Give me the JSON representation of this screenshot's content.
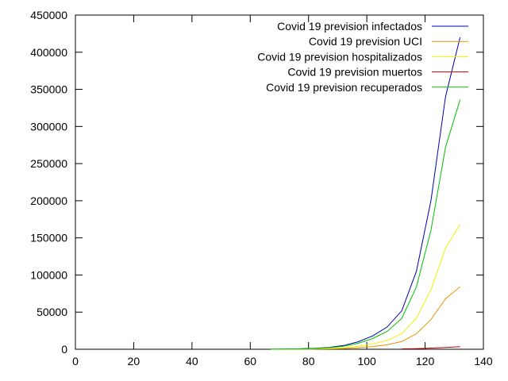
{
  "chart_data": {
    "type": "line",
    "title": "",
    "xlabel": "",
    "ylabel": "",
    "xlim": [
      0,
      140
    ],
    "ylim": [
      0,
      450000
    ],
    "xticks": [
      0,
      20,
      40,
      60,
      80,
      100,
      120,
      140
    ],
    "yticks": [
      0,
      50000,
      100000,
      150000,
      200000,
      250000,
      300000,
      350000,
      400000,
      450000
    ],
    "tick_labels_x": [
      "0",
      "20",
      "40",
      "60",
      "80",
      "100",
      "120",
      "140"
    ],
    "tick_labels_y": [
      "0",
      "50000",
      "100000",
      "150000",
      "200000",
      "250000",
      "300000",
      "350000",
      "400000",
      "450000"
    ],
    "grid": false,
    "legend_position": "top-right",
    "x": [
      67,
      72,
      77,
      82,
      87,
      92,
      97,
      102,
      107,
      112,
      117,
      122,
      127,
      132
    ],
    "series": [
      {
        "name": "Covid 19 prevision infectados",
        "color": "#0000b0",
        "values": [
          150,
          300,
          600,
          1200,
          2500,
          5000,
          10000,
          18000,
          30000,
          52000,
          105000,
          200000,
          340000,
          420000
        ]
      },
      {
        "name": "Covid 19 prevision UCI",
        "color": "#e69500",
        "values": [
          30,
          60,
          120,
          240,
          500,
          1000,
          2000,
          3600,
          6000,
          10400,
          21000,
          40000,
          68000,
          84000
        ]
      },
      {
        "name": "Covid 19 prevision hospitalizados",
        "color": "#f0f000",
        "values": [
          60,
          120,
          240,
          480,
          1000,
          2000,
          4000,
          7200,
          12000,
          20800,
          42000,
          80000,
          136000,
          168000
        ]
      },
      {
        "name": "Covid 19 prevision muertos",
        "color": "#c00000",
        "values": [
          null,
          null,
          null,
          null,
          null,
          null,
          null,
          null,
          null,
          500,
          900,
          1600,
          2500,
          3500
        ]
      },
      {
        "name": "Covid 19 prevision recuperados",
        "color": "#00c000",
        "values": [
          120,
          240,
          480,
          960,
          2000,
          4000,
          8000,
          14400,
          24000,
          41600,
          84000,
          160000,
          272000,
          336000
        ]
      }
    ]
  }
}
